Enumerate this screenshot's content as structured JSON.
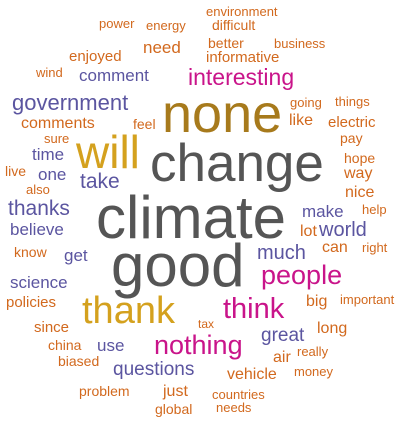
{
  "palette": {
    "gray": "#555555",
    "gold": "#d4a11e",
    "brown": "#a77a1c",
    "magenta": "#c9148a",
    "purple": "#5b55a0",
    "orange": "#d2691e"
  },
  "words": [
    {
      "text": "climate",
      "color": "#555555"
    },
    {
      "text": "good",
      "color": "#555555"
    },
    {
      "text": "change",
      "color": "#555555"
    },
    {
      "text": "none",
      "color": "#a77a1c"
    },
    {
      "text": "will",
      "color": "#d4a11e"
    },
    {
      "text": "thank",
      "color": "#d4a11e"
    },
    {
      "text": "think",
      "color": "#c9148a"
    },
    {
      "text": "people",
      "color": "#c9148a"
    },
    {
      "text": "nothing",
      "color": "#c9148a"
    },
    {
      "text": "interesting",
      "color": "#c9148a"
    },
    {
      "text": "government",
      "color": "#5b55a0"
    },
    {
      "text": "thanks",
      "color": "#5b55a0"
    },
    {
      "text": "take",
      "color": "#5b55a0"
    },
    {
      "text": "much",
      "color": "#5b55a0"
    },
    {
      "text": "world",
      "color": "#5b55a0"
    },
    {
      "text": "great",
      "color": "#5b55a0"
    },
    {
      "text": "questions",
      "color": "#5b55a0"
    },
    {
      "text": "comment",
      "color": "#5b55a0"
    },
    {
      "text": "science",
      "color": "#5b55a0"
    },
    {
      "text": "believe",
      "color": "#5b55a0"
    },
    {
      "text": "make",
      "color": "#5b55a0"
    },
    {
      "text": "time",
      "color": "#5b55a0"
    },
    {
      "text": "one",
      "color": "#5b55a0"
    },
    {
      "text": "get",
      "color": "#5b55a0"
    },
    {
      "text": "use",
      "color": "#5b55a0"
    },
    {
      "text": "environment",
      "color": "#d2691e"
    },
    {
      "text": "power",
      "color": "#d2691e"
    },
    {
      "text": "energy",
      "color": "#d2691e"
    },
    {
      "text": "difficult",
      "color": "#d2691e"
    },
    {
      "text": "better",
      "color": "#d2691e"
    },
    {
      "text": "business",
      "color": "#d2691e"
    },
    {
      "text": "enjoyed",
      "color": "#d2691e"
    },
    {
      "text": "need",
      "color": "#d2691e"
    },
    {
      "text": "informative",
      "color": "#d2691e"
    },
    {
      "text": "wind",
      "color": "#d2691e"
    },
    {
      "text": "going",
      "color": "#d2691e"
    },
    {
      "text": "things",
      "color": "#d2691e"
    },
    {
      "text": "comments",
      "color": "#d2691e"
    },
    {
      "text": "feel",
      "color": "#d2691e"
    },
    {
      "text": "like",
      "color": "#d2691e"
    },
    {
      "text": "electric",
      "color": "#d2691e"
    },
    {
      "text": "pay",
      "color": "#d2691e"
    },
    {
      "text": "sure",
      "color": "#d2691e"
    },
    {
      "text": "hope",
      "color": "#d2691e"
    },
    {
      "text": "live",
      "color": "#d2691e"
    },
    {
      "text": "way",
      "color": "#d2691e"
    },
    {
      "text": "also",
      "color": "#d2691e"
    },
    {
      "text": "nice",
      "color": "#d2691e"
    },
    {
      "text": "help",
      "color": "#d2691e"
    },
    {
      "text": "know",
      "color": "#d2691e"
    },
    {
      "text": "lot",
      "color": "#d2691e"
    },
    {
      "text": "can",
      "color": "#d2691e"
    },
    {
      "text": "right",
      "color": "#d2691e"
    },
    {
      "text": "policies",
      "color": "#d2691e"
    },
    {
      "text": "big",
      "color": "#d2691e"
    },
    {
      "text": "important",
      "color": "#d2691e"
    },
    {
      "text": "since",
      "color": "#d2691e"
    },
    {
      "text": "tax",
      "color": "#d2691e"
    },
    {
      "text": "long",
      "color": "#d2691e"
    },
    {
      "text": "china",
      "color": "#d2691e"
    },
    {
      "text": "air",
      "color": "#d2691e"
    },
    {
      "text": "really",
      "color": "#d2691e"
    },
    {
      "text": "biased",
      "color": "#d2691e"
    },
    {
      "text": "vehicle",
      "color": "#d2691e"
    },
    {
      "text": "money",
      "color": "#d2691e"
    },
    {
      "text": "problem",
      "color": "#d2691e"
    },
    {
      "text": "just",
      "color": "#d2691e"
    },
    {
      "text": "countries",
      "color": "#d2691e"
    },
    {
      "text": "global",
      "color": "#d2691e"
    },
    {
      "text": "needs",
      "color": "#d2691e"
    }
  ]
}
